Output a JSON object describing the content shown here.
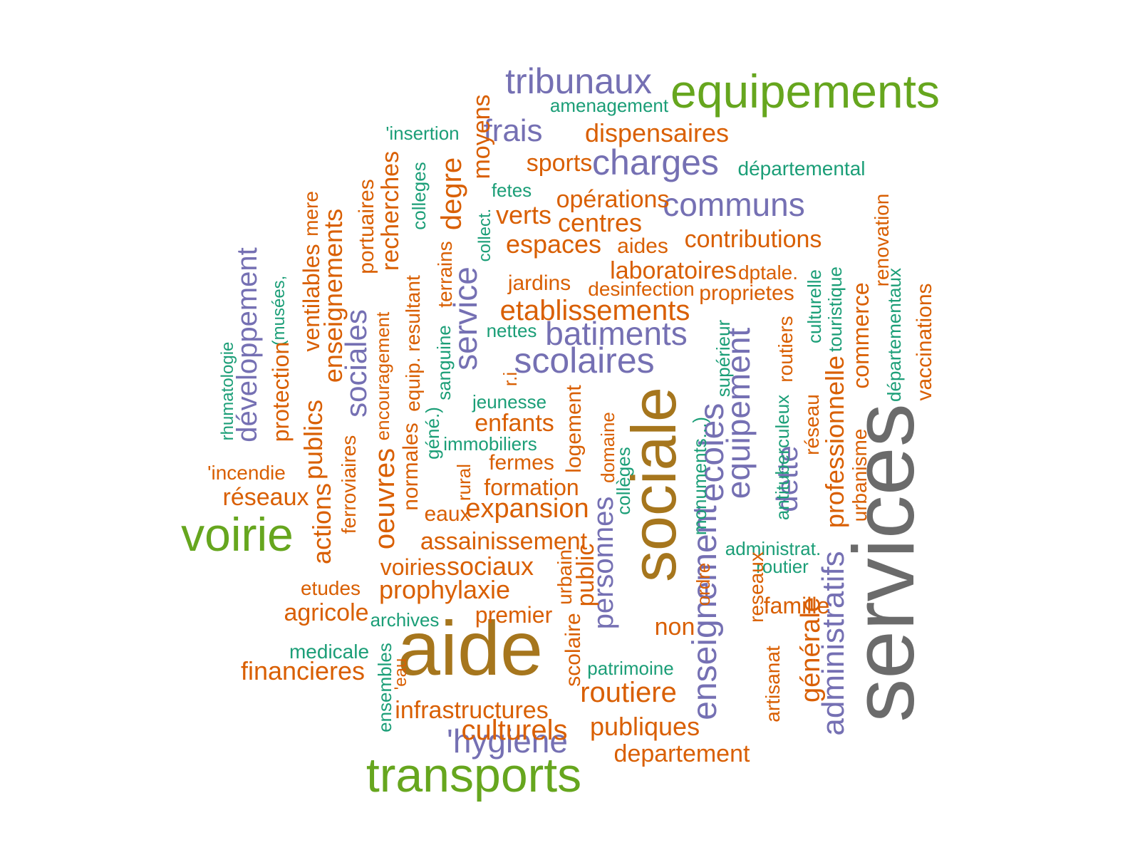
{
  "colors": {
    "gray": "#6b6b6b",
    "gold": "#a6761d",
    "green": "#66a61e",
    "purple": "#7570b3",
    "orange": "#d95f02",
    "teal": "#1b9e77"
  },
  "words": [
    {
      "text": "services",
      "color": "gray"
    },
    {
      "text": "aide",
      "color": "gold"
    },
    {
      "text": "sociale",
      "color": "gold"
    },
    {
      "text": "equipements",
      "color": "green"
    },
    {
      "text": "transports",
      "color": "green"
    },
    {
      "text": "voirie",
      "color": "green"
    },
    {
      "text": "tribunaux",
      "color": "purple"
    },
    {
      "text": "charges",
      "color": "purple"
    },
    {
      "text": "communs",
      "color": "purple"
    },
    {
      "text": "batiments",
      "color": "purple"
    },
    {
      "text": "scolaires",
      "color": "purple"
    },
    {
      "text": "frais",
      "color": "purple"
    },
    {
      "text": "service",
      "color": "purple"
    },
    {
      "text": "sociales",
      "color": "purple"
    },
    {
      "text": "développement",
      "color": "purple"
    },
    {
      "text": "enseignement",
      "color": "purple"
    },
    {
      "text": "ecoles",
      "color": "purple"
    },
    {
      "text": "equipement",
      "color": "purple"
    },
    {
      "text": "personnes",
      "color": "purple"
    },
    {
      "text": "administratifs",
      "color": "purple"
    },
    {
      "text": "dette",
      "color": "purple"
    },
    {
      "text": "'hygiene",
      "color": "purple"
    },
    {
      "text": "amenagement",
      "color": "teal"
    },
    {
      "text": "départemental",
      "color": "teal"
    },
    {
      "text": "'insertion",
      "color": "teal"
    },
    {
      "text": "fetes",
      "color": "teal"
    },
    {
      "text": "nettes",
      "color": "teal"
    },
    {
      "text": "jeunesse",
      "color": "teal"
    },
    {
      "text": "immobiliers",
      "color": "teal"
    },
    {
      "text": "administrat.",
      "color": "teal"
    },
    {
      "text": "routier",
      "color": "teal"
    },
    {
      "text": "archives",
      "color": "teal"
    },
    {
      "text": "medicale",
      "color": "teal"
    },
    {
      "text": "patrimoine",
      "color": "teal"
    },
    {
      "text": "colleges",
      "color": "teal"
    },
    {
      "text": "collect.",
      "color": "teal"
    },
    {
      "text": "rhumatologie",
      "color": "teal"
    },
    {
      "text": "(musées,",
      "color": "teal"
    },
    {
      "text": "sanguine",
      "color": "teal"
    },
    {
      "text": "géné.)",
      "color": "teal"
    },
    {
      "text": "collèges",
      "color": "teal"
    },
    {
      "text": "monuments...)",
      "color": "teal"
    },
    {
      "text": "supérieur",
      "color": "teal"
    },
    {
      "text": "antituberculeux",
      "color": "teal"
    },
    {
      "text": "culturelle",
      "color": "teal"
    },
    {
      "text": "touristique",
      "color": "teal"
    },
    {
      "text": "départementaux",
      "color": "teal"
    },
    {
      "text": "ensembles",
      "color": "teal"
    },
    {
      "text": "dispensaires",
      "color": "orange"
    },
    {
      "text": "sports",
      "color": "orange"
    },
    {
      "text": "opérations",
      "color": "orange"
    },
    {
      "text": "verts",
      "color": "orange"
    },
    {
      "text": "centres",
      "color": "orange"
    },
    {
      "text": "espaces",
      "color": "orange"
    },
    {
      "text": "aides",
      "color": "orange"
    },
    {
      "text": "contributions",
      "color": "orange"
    },
    {
      "text": "laboratoires",
      "color": "orange"
    },
    {
      "text": "dptale.",
      "color": "orange"
    },
    {
      "text": "jardins",
      "color": "orange"
    },
    {
      "text": "desinfection",
      "color": "orange"
    },
    {
      "text": "proprietes",
      "color": "orange"
    },
    {
      "text": "etablissements",
      "color": "orange"
    },
    {
      "text": "enfants",
      "color": "orange"
    },
    {
      "text": "fermes",
      "color": "orange"
    },
    {
      "text": "formation",
      "color": "orange"
    },
    {
      "text": "expansion",
      "color": "orange"
    },
    {
      "text": "eaux",
      "color": "orange"
    },
    {
      "text": "assainissement",
      "color": "orange"
    },
    {
      "text": "voiries",
      "color": "orange"
    },
    {
      "text": "sociaux",
      "color": "orange"
    },
    {
      "text": "prophylaxie",
      "color": "orange"
    },
    {
      "text": "etudes",
      "color": "orange"
    },
    {
      "text": "agricole",
      "color": "orange"
    },
    {
      "text": "premier",
      "color": "orange"
    },
    {
      "text": "non",
      "color": "orange"
    },
    {
      "text": "famille",
      "color": "orange"
    },
    {
      "text": "financieres",
      "color": "orange"
    },
    {
      "text": "infrastructures",
      "color": "orange"
    },
    {
      "text": "culturels",
      "color": "orange"
    },
    {
      "text": "routiere",
      "color": "orange"
    },
    {
      "text": "publiques",
      "color": "orange"
    },
    {
      "text": "departement",
      "color": "orange"
    },
    {
      "text": "réseaux",
      "color": "orange"
    },
    {
      "text": "'incendie",
      "color": "orange"
    },
    {
      "text": "moyens",
      "color": "orange"
    },
    {
      "text": "degre",
      "color": "orange"
    },
    {
      "text": "recherches",
      "color": "orange"
    },
    {
      "text": "portuaires",
      "color": "orange"
    },
    {
      "text": "enseignements",
      "color": "orange"
    },
    {
      "text": "mere",
      "color": "orange"
    },
    {
      "text": "ventilables",
      "color": "orange"
    },
    {
      "text": "protection",
      "color": "orange"
    },
    {
      "text": "publics",
      "color": "orange"
    },
    {
      "text": "actions",
      "color": "orange"
    },
    {
      "text": "ferroviaires",
      "color": "orange"
    },
    {
      "text": "oeuvres",
      "color": "orange"
    },
    {
      "text": "encouragement",
      "color": "orange"
    },
    {
      "text": "normales",
      "color": "orange"
    },
    {
      "text": "equip. resultant",
      "color": "orange"
    },
    {
      "text": "terrains",
      "color": "orange"
    },
    {
      "text": "rural",
      "color": "orange"
    },
    {
      "text": "r.i",
      "color": "orange"
    },
    {
      "text": "logement",
      "color": "orange"
    },
    {
      "text": "domaine",
      "color": "orange"
    },
    {
      "text": "urbain",
      "color": "orange"
    },
    {
      "text": "public",
      "color": "orange"
    },
    {
      "text": "scolaire",
      "color": "orange"
    },
    {
      "text": "'eau",
      "color": "orange"
    },
    {
      "text": "ordre",
      "color": "orange"
    },
    {
      "text": "reseaux",
      "color": "orange"
    },
    {
      "text": "artisanat",
      "color": "orange"
    },
    {
      "text": "routiers",
      "color": "orange"
    },
    {
      "text": "réseau",
      "color": "orange"
    },
    {
      "text": "professionnelle",
      "color": "orange"
    },
    {
      "text": "générale",
      "color": "orange"
    },
    {
      "text": "commerce",
      "color": "orange"
    },
    {
      "text": "urbanisme",
      "color": "orange"
    },
    {
      "text": "renovation",
      "color": "orange"
    },
    {
      "text": "vaccinations",
      "color": "orange"
    }
  ]
}
